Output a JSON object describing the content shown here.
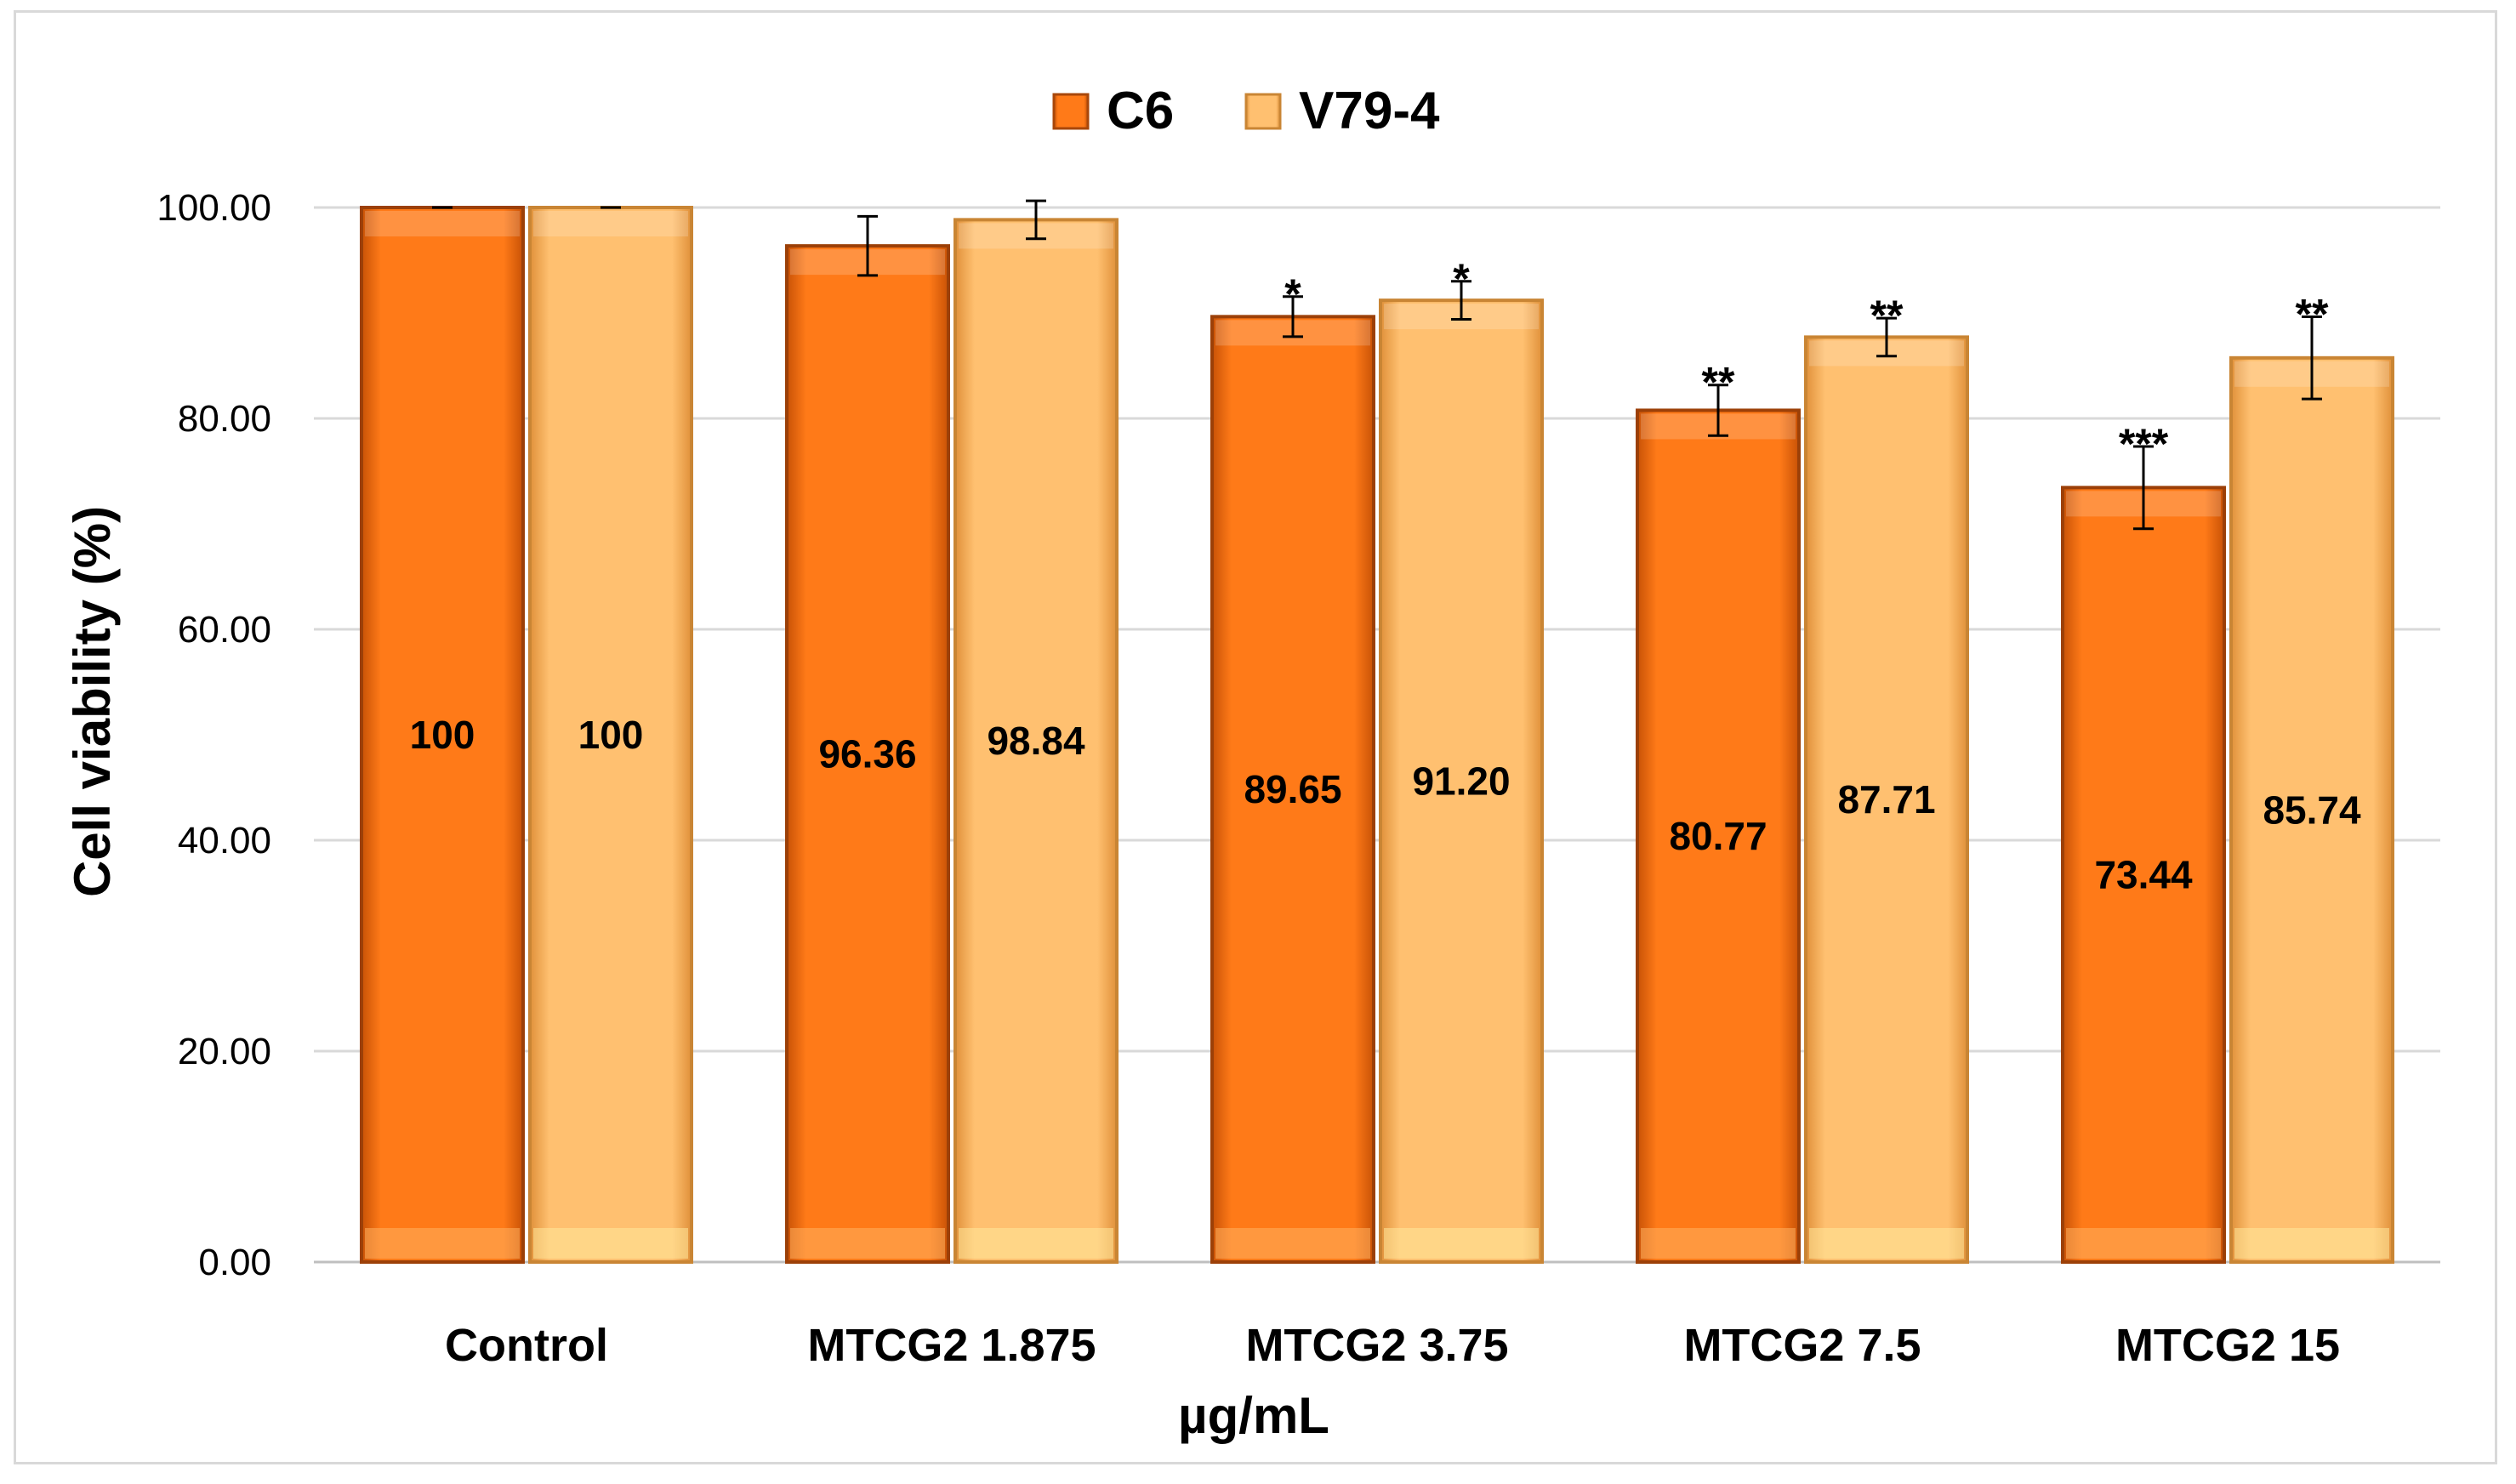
{
  "chart_data": {
    "type": "bar",
    "title": "",
    "xlabel": "µg/mL",
    "ylabel": "Cell viability (%)",
    "ylim": [
      0,
      100
    ],
    "yticks": [
      "0.00",
      "20.00",
      "40.00",
      "60.00",
      "80.00",
      "100.00"
    ],
    "ytick_values": [
      0,
      20,
      40,
      60,
      80,
      100
    ],
    "grid": true,
    "legend_position": "top-center",
    "categories": [
      "Control",
      "MTCG2 1.875",
      "MTCG2 3.75",
      "MTCG2 7.5",
      "MTCG2 15"
    ],
    "series": [
      {
        "name": "C6",
        "color": "#f26b0f",
        "values": [
          100,
          96.36,
          89.65,
          80.77,
          73.44
        ],
        "labels": [
          "100",
          "96.36",
          "89.65",
          "80.77",
          "73.44"
        ],
        "errors": [
          0,
          2.8,
          1.9,
          2.4,
          3.9
        ],
        "significance": [
          "",
          "",
          "*",
          "**",
          "***"
        ]
      },
      {
        "name": "V79-4",
        "color": "#f9b15c",
        "values": [
          100,
          98.84,
          91.2,
          87.71,
          85.74
        ],
        "labels": [
          "100",
          "98.84",
          "91.20",
          "87.71",
          "85.74"
        ],
        "errors": [
          0,
          1.8,
          1.8,
          1.8,
          3.9
        ],
        "significance": [
          "",
          "",
          "*",
          "**",
          "**"
        ]
      }
    ]
  }
}
